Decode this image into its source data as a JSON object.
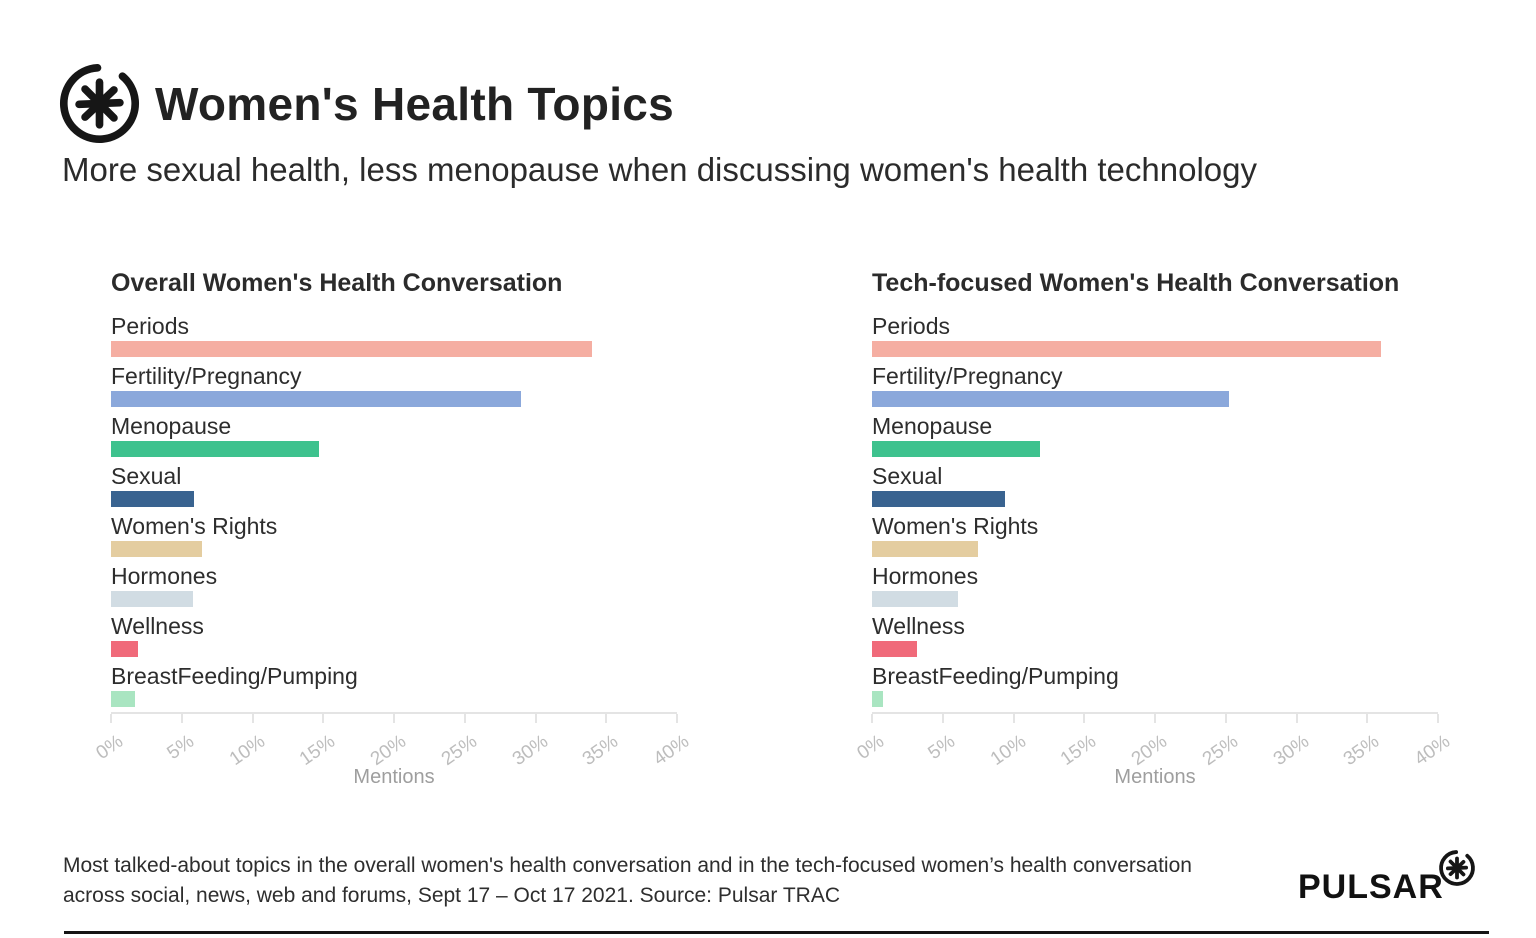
{
  "header": {
    "title": "Women's Health Topics",
    "subtitle": "More sexual health, less menopause when discussing women's health technology"
  },
  "chart_data": [
    {
      "type": "bar",
      "orientation": "horizontal",
      "title": "Overall Women's Health Conversation",
      "categories": [
        "Periods",
        "Fertility/Pregnancy",
        "Menopause",
        "Sexual",
        "Women's Rights",
        "Hormones",
        "Wellness",
        "BreastFeeding/Pumping"
      ],
      "values": [
        34.0,
        29.0,
        14.7,
        5.9,
        6.4,
        5.8,
        1.9,
        1.7
      ],
      "colors": [
        "#f5aea2",
        "#8ba8db",
        "#3ec28e",
        "#396390",
        "#e4cda0",
        "#d1dce3",
        "#f06a7a",
        "#a9e5c1"
      ],
      "xlabel": "Mentions",
      "xlim": [
        0,
        40
      ],
      "tick_labels": [
        "0%",
        "5%",
        "10%",
        "15%",
        "20%",
        "25%",
        "30%",
        "35%",
        "40%"
      ],
      "grid": false,
      "legend": false
    },
    {
      "type": "bar",
      "orientation": "horizontal",
      "title": "Tech-focused Women's Health Conversation",
      "categories": [
        "Periods",
        "Fertility/Pregnancy",
        "Menopause",
        "Sexual",
        "Women's Rights",
        "Hormones",
        "Wellness",
        "BreastFeeding/Pumping"
      ],
      "values": [
        36.0,
        25.2,
        11.9,
        9.4,
        7.5,
        6.1,
        3.2,
        0.8
      ],
      "colors": [
        "#f5aea2",
        "#8ba8db",
        "#3ec28e",
        "#396390",
        "#e4cda0",
        "#d1dce3",
        "#f06a7a",
        "#a9e5c1"
      ],
      "xlabel": "Mentions",
      "xlim": [
        0,
        40
      ],
      "tick_labels": [
        "0%",
        "5%",
        "10%",
        "15%",
        "20%",
        "25%",
        "30%",
        "35%",
        "40%"
      ],
      "grid": false,
      "legend": false
    }
  ],
  "footer": {
    "line1": "Most talked-about topics in the overall women's health conversation and in the tech-focused women’s health conversation",
    "line2": "across social, news, web and forums, Sept 17 – Oct 17 2021. Source: Pulsar TRAC",
    "brand": "PULSAR"
  }
}
